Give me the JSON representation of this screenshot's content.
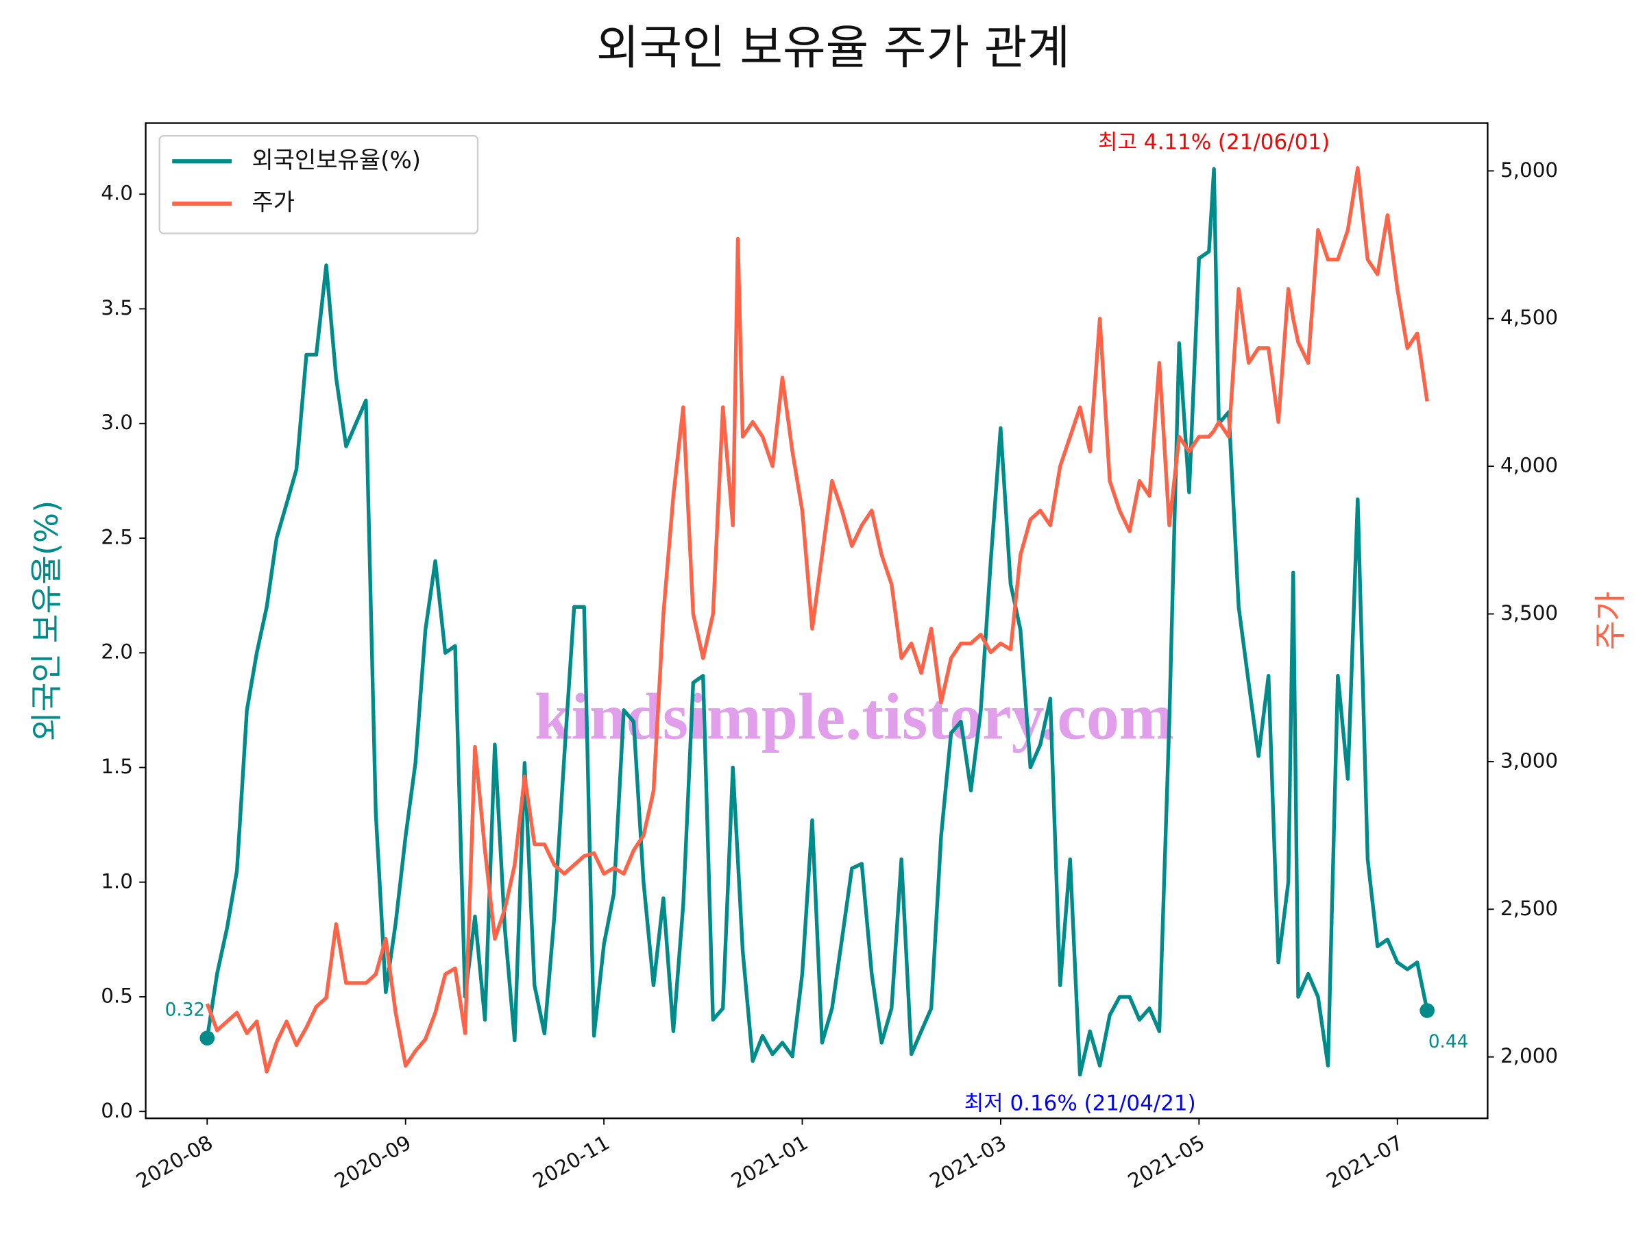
{
  "chart_data": {
    "type": "line",
    "title": "외국인 보유율 주가 관계",
    "y_label": "외국인 보유율(%)",
    "y2_label": "주가",
    "watermark": "kindsimple.tistory.com",
    "annotations": [
      "최고 4.11% (21/06/01)",
      "최저 0.16% (21/04/21)",
      "0.32",
      "0.44"
    ],
    "legend": "upper left",
    "x": [
      0,
      2,
      4,
      6,
      8,
      10,
      12,
      14,
      16,
      18,
      20,
      22,
      24,
      26,
      28,
      30,
      32,
      34,
      36,
      38,
      40,
      42,
      44,
      46,
      48,
      50,
      52,
      54,
      56,
      58,
      60,
      62,
      64,
      66,
      68,
      70,
      72,
      74,
      76,
      78,
      80,
      82,
      84,
      86,
      88,
      90,
      92,
      94,
      96,
      98,
      100,
      102,
      104,
      106,
      107,
      108,
      110,
      112,
      114,
      116,
      118,
      120,
      122,
      124,
      126,
      128,
      130,
      132,
      134,
      136,
      138,
      140,
      142,
      144,
      146,
      148,
      150,
      152,
      154,
      156,
      158,
      160,
      162,
      164,
      166,
      168,
      170,
      172,
      174,
      176,
      178,
      180,
      182,
      184,
      186,
      188,
      190,
      192,
      194,
      196,
      198,
      200,
      202,
      203,
      204,
      206,
      208,
      210,
      212,
      214,
      216,
      218,
      219,
      220,
      222,
      224,
      226,
      228,
      230,
      232,
      234,
      236,
      238,
      240,
      242,
      244,
      246
    ],
    "xlim": [
      -12.4,
      258.2
    ],
    "xticks": [
      {
        "value": 0,
        "label": "2020-08"
      },
      {
        "value": 40,
        "label": "2020-09"
      },
      {
        "value": 80,
        "label": "2020-11"
      },
      {
        "value": 120,
        "label": "2021-01"
      },
      {
        "value": 160,
        "label": "2021-03"
      },
      {
        "value": 200,
        "label": "2021-05"
      },
      {
        "value": 240,
        "label": "2021-07"
      }
    ],
    "ylim": [
      -0.03,
      4.31
    ],
    "yticks": [
      {
        "value": 0,
        "label": "0.0"
      },
      0.5,
      {
        "value": 1,
        "label": "1.0"
      },
      1.5,
      {
        "value": 2,
        "label": "2.0"
      },
      2.5,
      {
        "value": 3,
        "label": "3.0"
      },
      3.5,
      {
        "value": 4,
        "label": "4.0"
      }
    ],
    "y2lim": [
      1792,
      5162
    ],
    "y2ticks": [
      {
        "value": 2000,
        "label": "2,000"
      },
      {
        "value": 2500,
        "label": "2,500"
      },
      {
        "value": 3000,
        "label": "3,000"
      },
      {
        "value": 3500,
        "label": "3,500"
      },
      {
        "value": 4000,
        "label": "4,000"
      },
      {
        "value": 4500,
        "label": "4,500"
      },
      {
        "value": 5000,
        "label": "5,000"
      }
    ],
    "series": [
      {
        "name": "외국인보유율(%)",
        "color": "#008b8b",
        "values": [
          0.32,
          0.6,
          0.8,
          1.05,
          1.75,
          2.0,
          2.2,
          2.5,
          2.65,
          2.8,
          3.3,
          3.3,
          3.69,
          3.2,
          2.9,
          3.0,
          3.1,
          1.3,
          0.52,
          0.82,
          1.2,
          1.52,
          2.1,
          2.4,
          2.0,
          2.03,
          0.5,
          0.85,
          0.4,
          1.6,
          0.8,
          0.31,
          1.52,
          0.55,
          0.34,
          0.85,
          1.55,
          2.2,
          2.2,
          0.33,
          0.73,
          0.95,
          1.75,
          1.7,
          1.0,
          0.55,
          0.93,
          0.35,
          0.9,
          1.87,
          1.9,
          0.4,
          0.45,
          1.5,
          1.1,
          0.7,
          0.22,
          0.33,
          0.25,
          0.3,
          0.24,
          0.6,
          1.27,
          0.3,
          0.45,
          0.75,
          1.06,
          1.08,
          0.6,
          0.3,
          0.45,
          1.1,
          0.25,
          0.35,
          0.45,
          1.2,
          1.65,
          1.7,
          1.4,
          1.75,
          2.4,
          2.98,
          2.3,
          2.1,
          1.5,
          1.6,
          1.8,
          0.55,
          1.1,
          0.16,
          0.35,
          0.2,
          0.42,
          0.5,
          0.5,
          0.4,
          0.45,
          0.35,
          1.7,
          3.35,
          2.7,
          3.72,
          3.75,
          4.11,
          3.0,
          3.05,
          2.2,
          1.87,
          1.55,
          1.9,
          0.65,
          1.0,
          2.35,
          0.5,
          0.6,
          0.5,
          0.2,
          1.9,
          1.45,
          2.67,
          1.1,
          0.72,
          0.75,
          0.65,
          0.62,
          0.65,
          0.44
        ]
      },
      {
        "name": "주가",
        "color": "#ff6347",
        "axis": "y2",
        "values": [
          2180,
          2090,
          2120,
          2150,
          2080,
          2120,
          1950,
          2050,
          2120,
          2040,
          2100,
          2170,
          2200,
          2450,
          2250,
          2250,
          2250,
          2280,
          2400,
          2150,
          1970,
          2020,
          2060,
          2150,
          2280,
          2300,
          2080,
          3050,
          2700,
          2400,
          2500,
          2650,
          2950,
          2720,
          2720,
          2650,
          2620,
          2650,
          2680,
          2690,
          2620,
          2640,
          2620,
          2700,
          2750,
          2900,
          3500,
          3900,
          4200,
          3500,
          3350,
          3500,
          4200,
          3800,
          4770,
          4100,
          4150,
          4100,
          4000,
          4300,
          4050,
          3850,
          3450,
          3700,
          3950,
          3850,
          3730,
          3800,
          3850,
          3700,
          3600,
          3350,
          3400,
          3300,
          3450,
          3200,
          3350,
          3400,
          3400,
          3430,
          3370,
          3400,
          3380,
          3700,
          3820,
          3850,
          3800,
          4000,
          4100,
          4200,
          4050,
          4500,
          3950,
          3850,
          3780,
          3950,
          3900,
          4350,
          3800,
          4100,
          4050,
          4100,
          4100,
          4120,
          4150,
          4100,
          4600,
          4350,
          4400,
          4400,
          4150,
          4600,
          4500,
          4420,
          4350,
          4800,
          4700,
          4700,
          4800,
          5010,
          4700,
          4650,
          4850,
          4600,
          4400,
          4450,
          4220
        ]
      }
    ]
  }
}
